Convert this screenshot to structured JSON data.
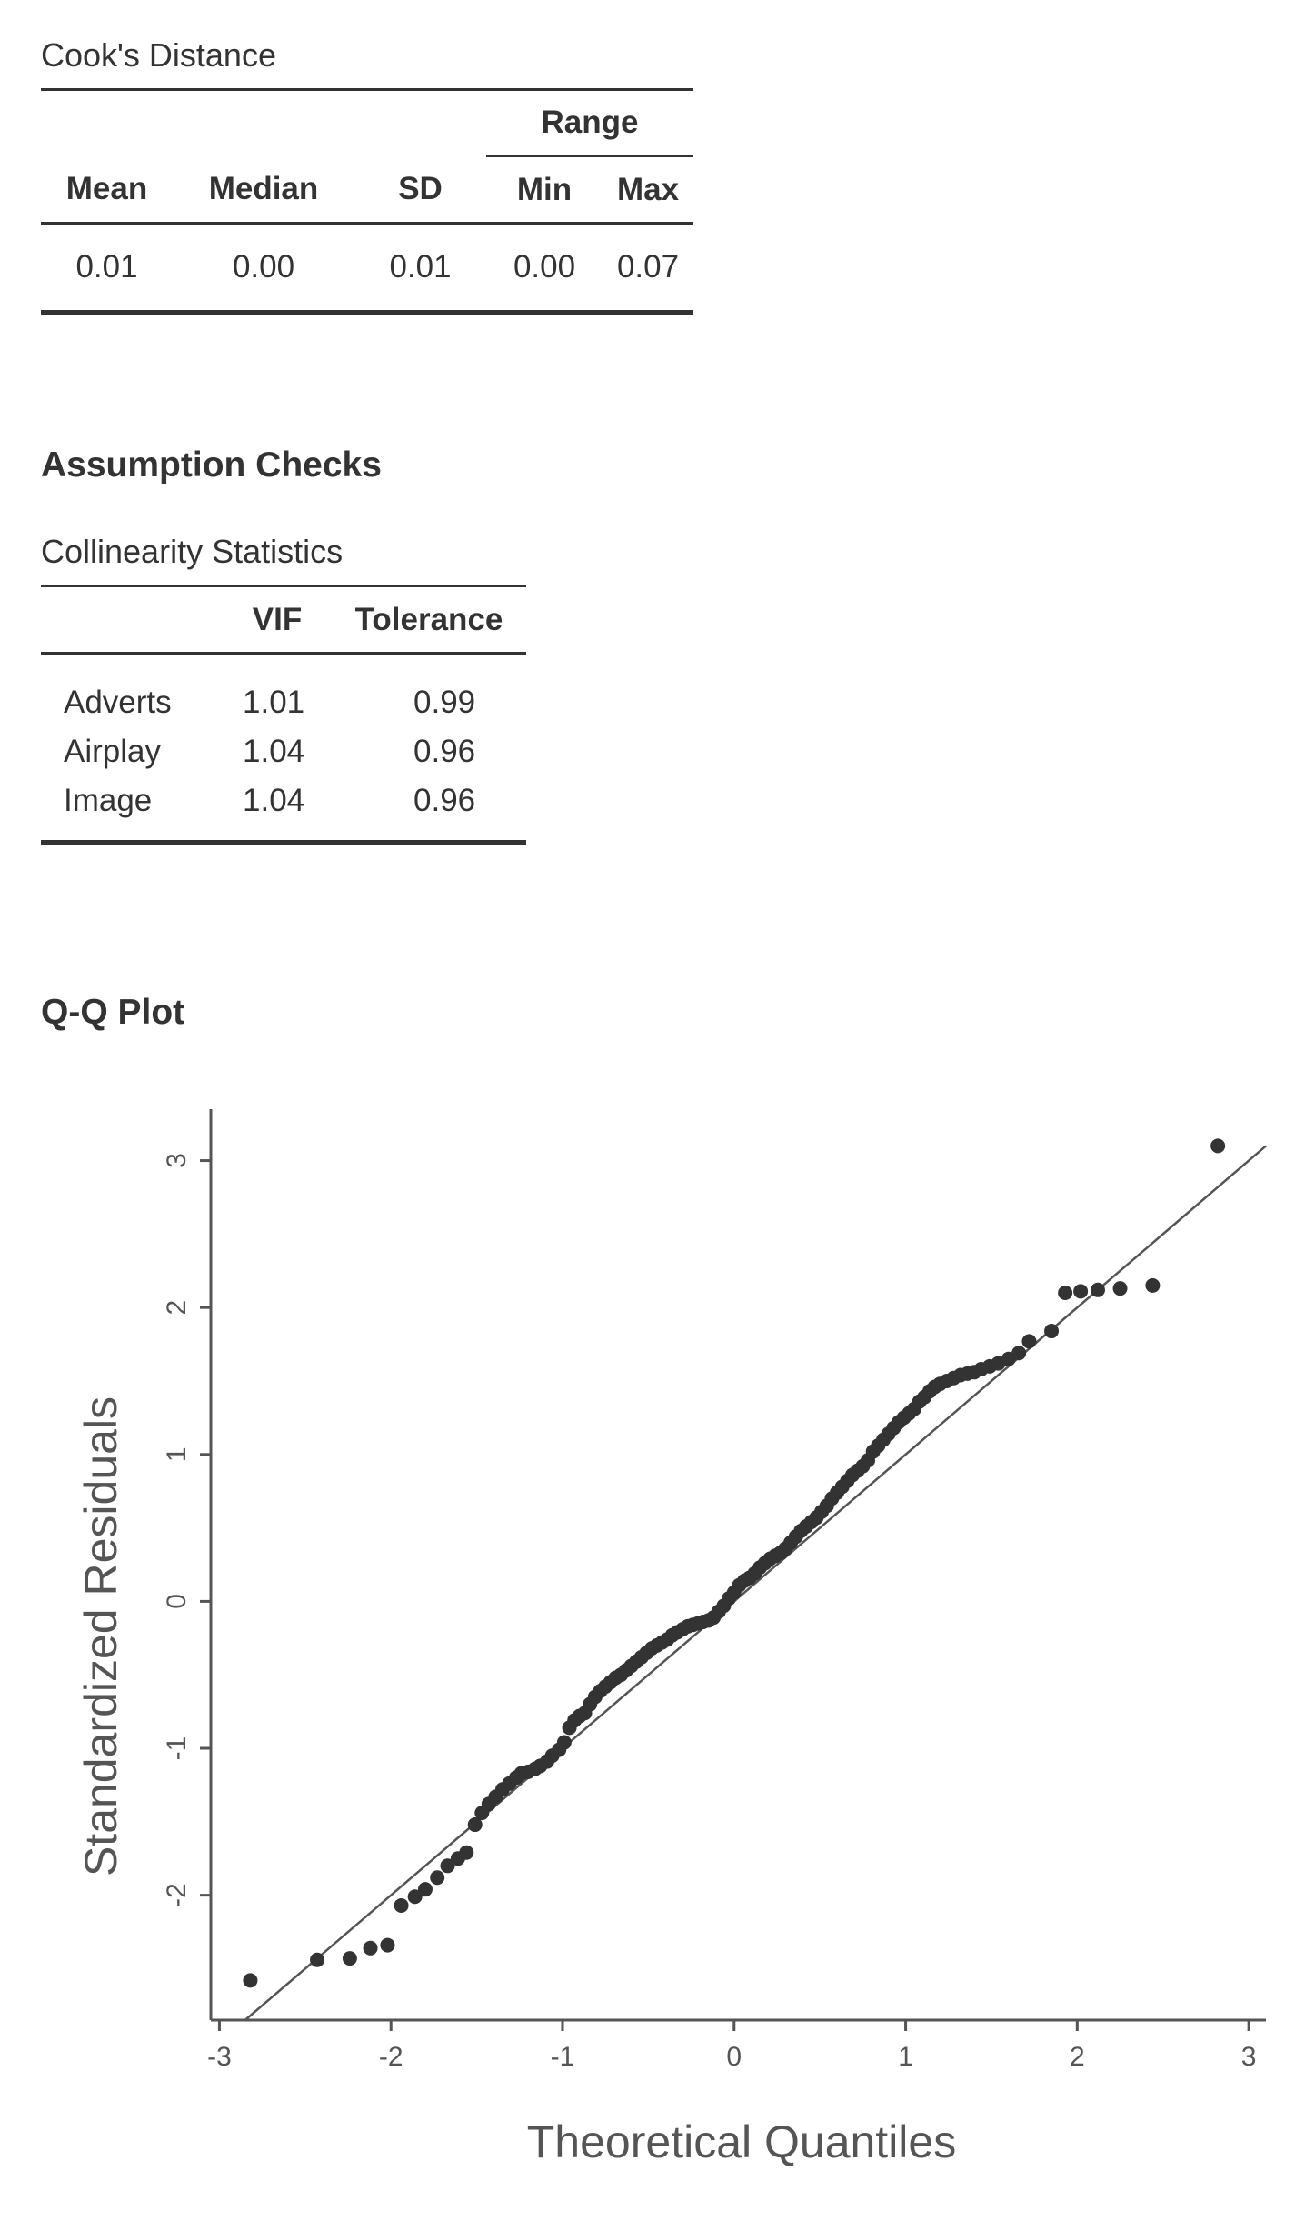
{
  "cooks": {
    "caption": "Cook's Distance",
    "range_label": "Range",
    "headers": [
      "Mean",
      "Median",
      "SD",
      "Min",
      "Max"
    ],
    "values": [
      "0.01",
      "0.00",
      "0.01",
      "0.00",
      "0.07"
    ]
  },
  "assumption": {
    "heading": "Assumption Checks",
    "caption": "Collinearity Statistics",
    "headers": [
      "",
      "VIF",
      "Tolerance"
    ],
    "rows": [
      {
        "name": "Adverts",
        "vif": "1.01",
        "tolerance": "0.99"
      },
      {
        "name": "Airplay",
        "vif": "1.04",
        "tolerance": "0.96"
      },
      {
        "name": "Image",
        "vif": "1.04",
        "tolerance": "0.96"
      }
    ]
  },
  "qq": {
    "heading": "Q-Q Plot"
  },
  "chart_data": {
    "type": "scatter",
    "title": "",
    "xlabel": "Theoretical Quantiles",
    "ylabel": "Standardized Residuals",
    "xlim": [
      -3.05,
      3.1
    ],
    "ylim": [
      -2.85,
      3.35
    ],
    "xticks": [
      "-3",
      "-2",
      "-1",
      "0",
      "1",
      "2",
      "3"
    ],
    "yticks": [
      "-2",
      "-1",
      "0",
      "1",
      "2",
      "3"
    ],
    "reference_line": {
      "slope": 1,
      "intercept": 0
    },
    "point_color": "#333333",
    "points": [
      [
        -2.82,
        -2.58
      ],
      [
        -2.43,
        -2.44
      ],
      [
        -2.24,
        -2.43
      ],
      [
        -2.12,
        -2.36
      ],
      [
        -2.02,
        -2.34
      ],
      [
        -1.94,
        -2.07
      ],
      [
        -1.86,
        -2.01
      ],
      [
        -1.8,
        -1.96
      ],
      [
        -1.73,
        -1.88
      ],
      [
        -1.67,
        -1.8
      ],
      [
        -1.61,
        -1.75
      ],
      [
        -1.56,
        -1.71
      ],
      [
        -1.51,
        -1.52
      ],
      [
        -1.47,
        -1.44
      ],
      [
        -1.43,
        -1.38
      ],
      [
        -1.39,
        -1.33
      ],
      [
        -1.35,
        -1.28
      ],
      [
        -1.31,
        -1.24
      ],
      [
        -1.27,
        -1.2
      ],
      [
        -1.24,
        -1.17
      ],
      [
        -1.2,
        -1.16
      ],
      [
        -1.16,
        -1.14
      ],
      [
        -1.13,
        -1.12
      ],
      [
        -1.09,
        -1.09
      ],
      [
        -1.06,
        -1.05
      ],
      [
        -1.02,
        -1.01
      ],
      [
        -0.99,
        -0.96
      ],
      [
        -0.96,
        -0.86
      ],
      [
        -0.93,
        -0.81
      ],
      [
        -0.9,
        -0.78
      ],
      [
        -0.87,
        -0.76
      ],
      [
        -0.84,
        -0.7
      ],
      [
        -0.81,
        -0.65
      ],
      [
        -0.78,
        -0.61
      ],
      [
        -0.75,
        -0.58
      ],
      [
        -0.72,
        -0.55
      ],
      [
        -0.69,
        -0.52
      ],
      [
        -0.66,
        -0.5
      ],
      [
        -0.63,
        -0.47
      ],
      [
        -0.6,
        -0.44
      ],
      [
        -0.57,
        -0.41
      ],
      [
        -0.54,
        -0.38
      ],
      [
        -0.51,
        -0.35
      ],
      [
        -0.48,
        -0.32
      ],
      [
        -0.45,
        -0.3
      ],
      [
        -0.42,
        -0.28
      ],
      [
        -0.39,
        -0.26
      ],
      [
        -0.36,
        -0.23
      ],
      [
        -0.33,
        -0.21
      ],
      [
        -0.3,
        -0.19
      ],
      [
        -0.27,
        -0.17
      ],
      [
        -0.24,
        -0.16
      ],
      [
        -0.21,
        -0.15
      ],
      [
        -0.18,
        -0.14
      ],
      [
        -0.15,
        -0.13
      ],
      [
        -0.12,
        -0.11
      ],
      [
        -0.09,
        -0.07
      ],
      [
        -0.06,
        -0.03
      ],
      [
        -0.03,
        0.02
      ],
      [
        0.0,
        0.06
      ],
      [
        0.03,
        0.11
      ],
      [
        0.06,
        0.14
      ],
      [
        0.09,
        0.16
      ],
      [
        0.12,
        0.19
      ],
      [
        0.15,
        0.23
      ],
      [
        0.18,
        0.26
      ],
      [
        0.21,
        0.29
      ],
      [
        0.24,
        0.31
      ],
      [
        0.27,
        0.33
      ],
      [
        0.3,
        0.36
      ],
      [
        0.33,
        0.4
      ],
      [
        0.36,
        0.44
      ],
      [
        0.39,
        0.48
      ],
      [
        0.42,
        0.51
      ],
      [
        0.45,
        0.54
      ],
      [
        0.48,
        0.57
      ],
      [
        0.51,
        0.61
      ],
      [
        0.54,
        0.65
      ],
      [
        0.57,
        0.7
      ],
      [
        0.6,
        0.74
      ],
      [
        0.63,
        0.78
      ],
      [
        0.66,
        0.82
      ],
      [
        0.69,
        0.86
      ],
      [
        0.72,
        0.89
      ],
      [
        0.75,
        0.92
      ],
      [
        0.78,
        0.96
      ],
      [
        0.81,
        1.02
      ],
      [
        0.84,
        1.06
      ],
      [
        0.87,
        1.1
      ],
      [
        0.9,
        1.14
      ],
      [
        0.93,
        1.18
      ],
      [
        0.96,
        1.22
      ],
      [
        0.99,
        1.25
      ],
      [
        1.02,
        1.28
      ],
      [
        1.05,
        1.31
      ],
      [
        1.08,
        1.36
      ],
      [
        1.11,
        1.39
      ],
      [
        1.14,
        1.43
      ],
      [
        1.17,
        1.46
      ],
      [
        1.2,
        1.48
      ],
      [
        1.24,
        1.5
      ],
      [
        1.28,
        1.52
      ],
      [
        1.32,
        1.54
      ],
      [
        1.36,
        1.55
      ],
      [
        1.4,
        1.56
      ],
      [
        1.44,
        1.58
      ],
      [
        1.49,
        1.6
      ],
      [
        1.54,
        1.62
      ],
      [
        1.6,
        1.65
      ],
      [
        1.66,
        1.69
      ],
      [
        1.72,
        1.77
      ],
      [
        1.85,
        1.84
      ],
      [
        1.93,
        2.1
      ],
      [
        2.02,
        2.11
      ],
      [
        2.12,
        2.12
      ],
      [
        2.25,
        2.13
      ],
      [
        2.44,
        2.15
      ],
      [
        2.82,
        3.1
      ]
    ]
  }
}
